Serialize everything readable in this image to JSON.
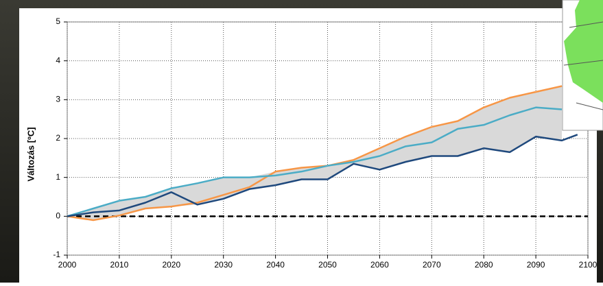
{
  "chart_data": {
    "type": "line",
    "y_label": "Változás [ºC]",
    "x": [
      2000,
      2005,
      2010,
      2015,
      2020,
      2025,
      2030,
      2035,
      2040,
      2045,
      2050,
      2055,
      2060,
      2065,
      2070,
      2075,
      2080,
      2085,
      2090,
      2095,
      2098
    ],
    "series": [
      {
        "color": "#f79646",
        "values": [
          0,
          -0.1,
          0.02,
          0.2,
          0.25,
          0.35,
          0.55,
          0.75,
          1.15,
          1.25,
          1.3,
          1.45,
          1.75,
          2.05,
          2.3,
          2.45,
          2.8,
          3.05,
          3.2,
          3.35,
          null
        ]
      },
      {
        "color": "#4bacc6",
        "values": [
          0,
          0.2,
          0.4,
          0.5,
          0.72,
          0.85,
          1.0,
          1.0,
          1.05,
          1.15,
          1.3,
          1.4,
          1.55,
          1.8,
          1.9,
          2.25,
          2.35,
          2.6,
          2.8,
          2.75,
          null
        ]
      },
      {
        "color": "#1f497d",
        "values": [
          0,
          0.1,
          0.15,
          0.35,
          0.62,
          0.3,
          0.45,
          0.7,
          0.8,
          0.95,
          0.95,
          1.35,
          1.2,
          1.4,
          1.55,
          1.55,
          1.75,
          1.65,
          2.05,
          1.95,
          2.1
        ]
      }
    ],
    "xlim": [
      2000,
      2100
    ],
    "xticks": [
      2000,
      2010,
      2020,
      2030,
      2040,
      2050,
      2060,
      2070,
      2080,
      2090,
      2100
    ],
    "ylim": [
      -1,
      5
    ],
    "yticks": [
      -1,
      0,
      1,
      2,
      3,
      4,
      5
    ],
    "grid": true,
    "zero_line": true,
    "range_band": true
  }
}
